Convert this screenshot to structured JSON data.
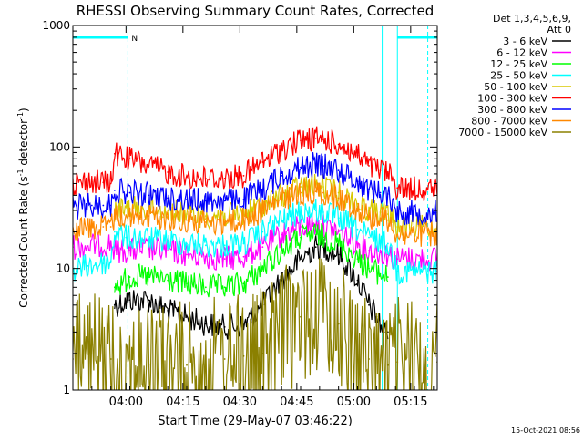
{
  "chart_data": {
    "type": "line",
    "title": "RHESSI Observing Summary Count Rates, Corrected",
    "xlabel": "Start Time (29-May-07 03:46:22)",
    "ylabel_main": "Corrected Count Rate (s",
    "ylabel_sup1": "-1",
    "ylabel_mid": " detector",
    "ylabel_sup2": "-1",
    "ylabel_end": ")",
    "y_scale": "log",
    "ylim": [
      1,
      1000
    ],
    "xlim_minutes": [
      0,
      96
    ],
    "x_ticks": [
      {
        "t": 14,
        "label": "04:00"
      },
      {
        "t": 29,
        "label": "04:15"
      },
      {
        "t": 44,
        "label": "04:30"
      },
      {
        "t": 59,
        "label": "04:45"
      },
      {
        "t": 74,
        "label": "05:00"
      },
      {
        "t": 89,
        "label": "05:15"
      }
    ],
    "y_ticks": [
      {
        "v": 1,
        "label": "1"
      },
      {
        "v": 10,
        "label": "10"
      },
      {
        "v": 100,
        "label": "100"
      },
      {
        "v": 1000,
        "label": "1000"
      }
    ],
    "legend_header": [
      "Det 1,3,4,5,6,9,",
      "Att 0"
    ],
    "legend_position": "right",
    "timestamp": "15-Oct-2021 08:56",
    "flag_label": "N",
    "flag_bars": [
      [
        0,
        14.5
      ],
      [
        85.5,
        96
      ]
    ],
    "dashed_markers": [
      14.5,
      93.5
    ],
    "night_edges": [
      81.5,
      85.5
    ],
    "series": [
      {
        "name": "3 - 6 keV",
        "color": "#000000",
        "points": [
          [
            11,
            5
          ],
          [
            15,
            5.5
          ],
          [
            20,
            5.5
          ],
          [
            25,
            4.5
          ],
          [
            30,
            4
          ],
          [
            35,
            3.5
          ],
          [
            40,
            3.3
          ],
          [
            45,
            3.4
          ],
          [
            50,
            5
          ],
          [
            55,
            8
          ],
          [
            60,
            12
          ],
          [
            64,
            15
          ],
          [
            66,
            15
          ],
          [
            70,
            13
          ],
          [
            75,
            8
          ],
          [
            78,
            5
          ],
          [
            80,
            4
          ],
          [
            82,
            3
          ],
          [
            83,
            3
          ]
        ]
      },
      {
        "name": "6 - 12 keV",
        "color": "#ff00ff",
        "points": [
          [
            0,
            15
          ],
          [
            10,
            16
          ],
          [
            11,
            14
          ],
          [
            15,
            14
          ],
          [
            20,
            14.5
          ],
          [
            25,
            14
          ],
          [
            30,
            13
          ],
          [
            35,
            12.5
          ],
          [
            40,
            12
          ],
          [
            45,
            12.5
          ],
          [
            50,
            15
          ],
          [
            55,
            19
          ],
          [
            60,
            22
          ],
          [
            64,
            23
          ],
          [
            66,
            22
          ],
          [
            70,
            20
          ],
          [
            75,
            16
          ],
          [
            78,
            14
          ],
          [
            81,
            13.5
          ],
          [
            83,
            13
          ],
          [
            85.5,
            12
          ],
          [
            96,
            12
          ]
        ]
      },
      {
        "name": "12 - 25 keV",
        "color": "#00ff00",
        "points": [
          [
            11,
            7
          ],
          [
            15,
            8.5
          ],
          [
            20,
            8.5
          ],
          [
            25,
            8
          ],
          [
            30,
            7.5
          ],
          [
            35,
            7
          ],
          [
            40,
            7
          ],
          [
            45,
            7.5
          ],
          [
            50,
            10
          ],
          [
            55,
            14
          ],
          [
            60,
            18
          ],
          [
            64,
            19
          ],
          [
            66,
            18
          ],
          [
            70,
            16
          ],
          [
            75,
            12
          ],
          [
            78,
            10
          ],
          [
            81,
            9
          ],
          [
            83,
            8.5
          ]
        ]
      },
      {
        "name": "25 - 50 keV",
        "color": "#00ffff",
        "points": [
          [
            0,
            9.5
          ],
          [
            4,
            10.5
          ],
          [
            8,
            11
          ],
          [
            10,
            11.5
          ],
          [
            11,
            20
          ],
          [
            14,
            18
          ],
          [
            20,
            17.5
          ],
          [
            25,
            17
          ],
          [
            30,
            16
          ],
          [
            35,
            15.5
          ],
          [
            40,
            15.5
          ],
          [
            45,
            16
          ],
          [
            50,
            20
          ],
          [
            55,
            25
          ],
          [
            60,
            29
          ],
          [
            64,
            30
          ],
          [
            66,
            29
          ],
          [
            70,
            26
          ],
          [
            75,
            21
          ],
          [
            78,
            18
          ],
          [
            81,
            17
          ],
          [
            83,
            16
          ],
          [
            85.5,
            9.5
          ],
          [
            96,
            9.5
          ]
        ]
      },
      {
        "name": "50 - 100 keV",
        "color": "#d8c800",
        "points": [
          [
            11,
            30
          ],
          [
            15,
            31
          ],
          [
            20,
            31
          ],
          [
            25,
            30
          ],
          [
            30,
            28
          ],
          [
            35,
            27
          ],
          [
            40,
            27
          ],
          [
            45,
            28
          ],
          [
            50,
            33
          ],
          [
            55,
            40
          ],
          [
            60,
            47
          ],
          [
            64,
            48
          ],
          [
            66,
            47
          ],
          [
            70,
            42
          ],
          [
            75,
            34
          ],
          [
            78,
            30
          ],
          [
            81,
            29
          ],
          [
            83,
            28
          ],
          [
            85.5,
            22
          ],
          [
            96,
            22
          ]
        ]
      },
      {
        "name": "100 - 300 keV",
        "color": "#ff0000",
        "points": [
          [
            0,
            50
          ],
          [
            5,
            52
          ],
          [
            8,
            51
          ],
          [
            10,
            50
          ],
          [
            11,
            88
          ],
          [
            15,
            80
          ],
          [
            20,
            70
          ],
          [
            25,
            62
          ],
          [
            30,
            57
          ],
          [
            35,
            55
          ],
          [
            40,
            55
          ],
          [
            45,
            58
          ],
          [
            50,
            75
          ],
          [
            55,
            95
          ],
          [
            60,
            113
          ],
          [
            64,
            118
          ],
          [
            66,
            115
          ],
          [
            70,
            105
          ],
          [
            75,
            85
          ],
          [
            78,
            70
          ],
          [
            81,
            64
          ],
          [
            83,
            62
          ],
          [
            85.5,
            46
          ],
          [
            96,
            45
          ]
        ]
      },
      {
        "name": "300 - 800 keV",
        "color": "#0000ff",
        "points": [
          [
            0,
            32
          ],
          [
            5,
            33
          ],
          [
            8,
            33
          ],
          [
            10,
            33
          ],
          [
            11,
            44
          ],
          [
            15,
            42
          ],
          [
            20,
            40
          ],
          [
            25,
            38
          ],
          [
            30,
            37
          ],
          [
            35,
            36
          ],
          [
            40,
            36
          ],
          [
            45,
            37
          ],
          [
            50,
            45
          ],
          [
            55,
            58
          ],
          [
            60,
            68
          ],
          [
            64,
            72
          ],
          [
            66,
            70
          ],
          [
            70,
            64
          ],
          [
            75,
            52
          ],
          [
            78,
            45
          ],
          [
            81,
            42
          ],
          [
            83,
            41
          ],
          [
            85.5,
            29
          ],
          [
            96,
            29
          ]
        ]
      },
      {
        "name": "800 - 7000 keV",
        "color": "#ff8800",
        "points": [
          [
            0,
            21
          ],
          [
            5,
            22
          ],
          [
            8,
            22
          ],
          [
            10,
            22
          ],
          [
            11,
            27
          ],
          [
            15,
            27
          ],
          [
            20,
            27
          ],
          [
            25,
            26
          ],
          [
            30,
            25
          ],
          [
            35,
            24
          ],
          [
            40,
            24
          ],
          [
            45,
            25
          ],
          [
            50,
            30
          ],
          [
            55,
            37
          ],
          [
            60,
            42
          ],
          [
            64,
            43
          ],
          [
            66,
            42
          ],
          [
            70,
            38
          ],
          [
            75,
            31
          ],
          [
            78,
            27
          ],
          [
            81,
            26
          ],
          [
            83,
            25
          ],
          [
            85.5,
            19
          ],
          [
            96,
            19
          ]
        ]
      },
      {
        "name": "7000 - 15000 keV",
        "color": "#8b8000",
        "points": [
          [
            0,
            1.8
          ],
          [
            10,
            1.8
          ],
          [
            20,
            1.6
          ],
          [
            30,
            1.6
          ],
          [
            40,
            1.8
          ],
          [
            45,
            1.9
          ],
          [
            50,
            2
          ],
          [
            55,
            3
          ],
          [
            60,
            4
          ],
          [
            64,
            4.5
          ],
          [
            66,
            4.3
          ],
          [
            70,
            3.5
          ],
          [
            75,
            2.2
          ],
          [
            78,
            1.8
          ],
          [
            83,
            1.6
          ],
          [
            85.5,
            1.7
          ],
          [
            96,
            1.7
          ]
        ]
      }
    ]
  }
}
